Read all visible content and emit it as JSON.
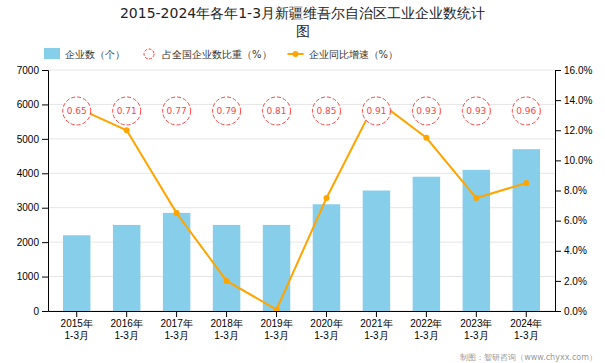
{
  "chart_data": {
    "type": "bar",
    "title": "2015-2024年各年1-3月新疆维吾尔自治区工业企业数统计",
    "subtitle": "图",
    "categories": [
      "2015年\n1-3月",
      "2016年\n1-3月",
      "2017年\n1-3月",
      "2018年\n1-3月",
      "2019年\n1-3月",
      "2020年\n1-3月",
      "2021年\n1-3月",
      "2022年\n1-3月",
      "2023年\n1-3月",
      "2024年\n1-3月"
    ],
    "series": [
      {
        "name": "企业数（个）",
        "type": "bar",
        "color": "#87CEEB",
        "values": [
          2200,
          2500,
          2850,
          2500,
          2500,
          3100,
          3500,
          3900,
          4100,
          4700
        ]
      },
      {
        "name": "占全国企业数比重（%）",
        "type": "label",
        "marker": "circle",
        "line_style": "dashed",
        "color": "#FF4444",
        "data_labels": true,
        "values": [
          0.65,
          0.71,
          0.77,
          0.79,
          0.81,
          0.85,
          0.91,
          0.93,
          0.93,
          0.96
        ]
      },
      {
        "name": "企业同比增速（%）",
        "type": "line",
        "axis": "y2",
        "marker": "circle",
        "color": "#FFA500",
        "values": [
          13.5,
          12.0,
          6.5,
          2.0,
          0.1,
          7.5,
          14.0,
          11.5,
          7.5,
          8.5
        ]
      }
    ],
    "ylim": [
      0,
      7000
    ],
    "yticks": [
      0,
      1000,
      2000,
      3000,
      4000,
      5000,
      6000,
      7000
    ],
    "y2lim": [
      0,
      16.0
    ],
    "y2ticks": [
      {
        "value": 0,
        "label": "0.0%"
      },
      {
        "value": 2,
        "label": "2.0%"
      },
      {
        "value": 4,
        "label": "4.0%"
      },
      {
        "value": 6,
        "label": "6.0%"
      },
      {
        "value": 8,
        "label": "8.0%"
      },
      {
        "value": 10,
        "label": "10.0%"
      },
      {
        "value": 12,
        "label": "12.0%"
      },
      {
        "value": 14,
        "label": "14.0%"
      },
      {
        "value": 16,
        "label": "16.0%"
      }
    ],
    "grid": true,
    "legend": "upper left",
    "annotations": [
      "制图：智研咨询（www.chyxx.com）"
    ]
  }
}
